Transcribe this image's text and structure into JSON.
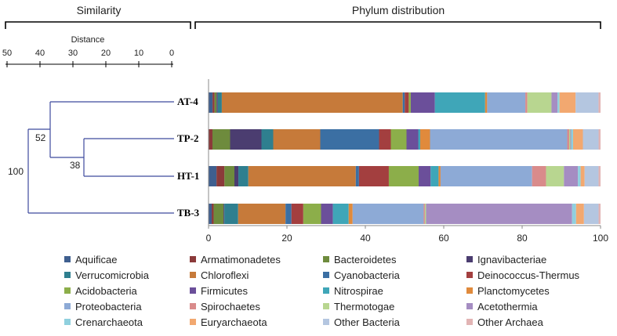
{
  "chart_data": {
    "type": "stacked-bar-with-dendrogram",
    "left_panel": {
      "title": "Similarity",
      "axis_label": "Distance",
      "ticks": [
        "50",
        "40",
        "30",
        "20",
        "10",
        "0"
      ],
      "tick_values": [
        50,
        40,
        30,
        20,
        10,
        0
      ],
      "node_labels": [
        "52",
        "38",
        "100"
      ]
    },
    "right_panel": {
      "title": "Phylum distribution",
      "xlim": [
        0,
        100
      ],
      "ticks": [
        "0",
        "20",
        "40",
        "60",
        "80",
        "100"
      ]
    },
    "samples": [
      "AT-4",
      "TP-2",
      "HT-1",
      "TB-3"
    ],
    "series": [
      {
        "name": "Aquificae",
        "color": "#3F5F8F",
        "values": [
          1.0,
          0.0,
          2.0,
          0.8
        ]
      },
      {
        "name": "Armatimonadetes",
        "color": "#8B3A3A",
        "values": [
          0.5,
          1.0,
          2.0,
          0.5
        ]
      },
      {
        "name": "Bacteroidetes",
        "color": "#6E8B3D",
        "values": [
          0.5,
          4.5,
          2.5,
          2.5
        ]
      },
      {
        "name": "Ignavibacteriae",
        "color": "#4B3D70",
        "values": [
          0.3,
          8.0,
          1.0,
          0.2
        ]
      },
      {
        "name": "Verrucomicrobia",
        "color": "#2F7F8F",
        "values": [
          1.0,
          3.0,
          2.5,
          3.5
        ]
      },
      {
        "name": "Chloroflexi",
        "color": "#C67A3A",
        "values": [
          45.0,
          12.0,
          27.0,
          12.0
        ]
      },
      {
        "name": "Cyanobacteria",
        "color": "#3B6FA3",
        "values": [
          0.5,
          15.0,
          0.8,
          1.5
        ]
      },
      {
        "name": "Deinococcus-Thermus",
        "color": "#A33F3F",
        "values": [
          1.0,
          3.0,
          7.5,
          3.0
        ]
      },
      {
        "name": "Acidobacteria",
        "color": "#8CAE4A",
        "values": [
          0.5,
          4.0,
          7.5,
          4.5
        ]
      },
      {
        "name": "Firmicutes",
        "color": "#6B4F9A",
        "values": [
          6.0,
          3.0,
          3.0,
          3.0
        ]
      },
      {
        "name": "Nitrospirae",
        "color": "#3FA6B8",
        "values": [
          12.5,
          0.5,
          2.0,
          4.0
        ]
      },
      {
        "name": "Planctomycetes",
        "color": "#E08A3C",
        "values": [
          0.5,
          2.5,
          0.5,
          1.0
        ]
      },
      {
        "name": "Proteobacteria",
        "color": "#8DAAD6",
        "values": [
          9.5,
          35.0,
          23.0,
          18.0
        ]
      },
      {
        "name": "Spirochaetes",
        "color": "#D98B8B",
        "values": [
          0.5,
          0.5,
          3.5,
          0.3
        ]
      },
      {
        "name": "Thermotogae",
        "color": "#B8D690",
        "values": [
          6.0,
          0.3,
          4.5,
          0.3
        ]
      },
      {
        "name": "Acetothermia",
        "color": "#A58DC2",
        "values": [
          1.5,
          0.2,
          3.5,
          37.0
        ]
      },
      {
        "name": "Crenarchaeota",
        "color": "#8FD0DE",
        "values": [
          0.5,
          0.5,
          0.7,
          1.0
        ]
      },
      {
        "name": "Euryarchaeota",
        "color": "#F2A870",
        "values": [
          4.0,
          2.5,
          1.0,
          2.0
        ]
      },
      {
        "name": "Other Bacteria",
        "color": "#B4C6E0",
        "values": [
          5.7,
          4.0,
          3.5,
          3.7
        ]
      },
      {
        "name": "Other Archaea",
        "color": "#E2B4B4",
        "values": [
          0.5,
          0.5,
          0.5,
          0.5
        ]
      }
    ]
  }
}
